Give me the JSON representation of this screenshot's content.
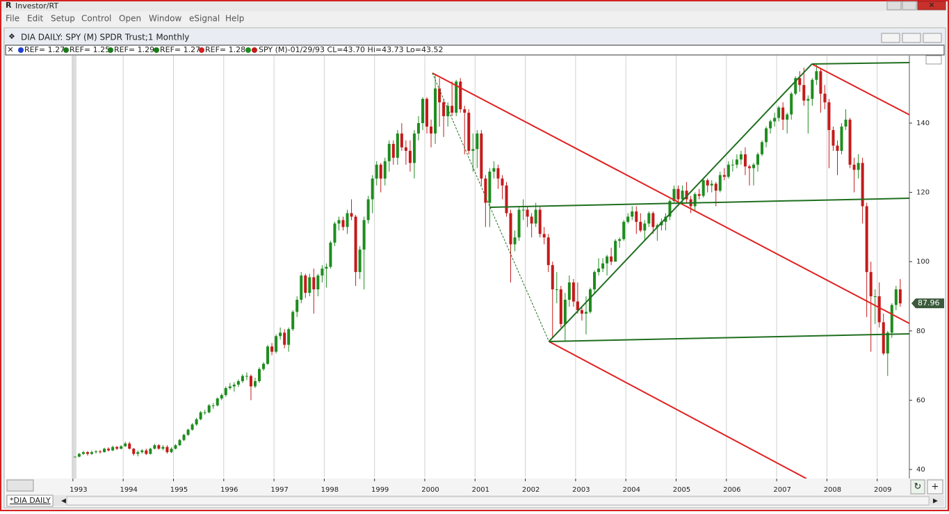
{
  "app": {
    "title": "Investor/RT",
    "menu": [
      "File",
      "Edit",
      "Setup",
      "Control",
      "Open",
      "Window",
      "eSignal",
      "Help"
    ]
  },
  "window": {
    "title": "DIA DAILY: SPY (M) SPDR Trust;1 Monthly",
    "legend": [
      {
        "label": "REF= 1.27",
        "color": "#1f3fd0"
      },
      {
        "label": "REF= 1.25",
        "color": "#1a7a1a"
      },
      {
        "label": "REF= 1.29",
        "color": "#1a7a1a"
      },
      {
        "label": "REF= 1.27",
        "color": "#1a7a1a"
      },
      {
        "label": "REF= 1.28",
        "color": "#d01f1f"
      }
    ],
    "quote": "SPY (M)-01/29/93 CL=43.70 Hi=43.73 Lo=43.52",
    "tab": "*DIA DAILY"
  },
  "chart_data": {
    "type": "candlestick",
    "up_color": "#1e8c1e",
    "down_color": "#c41a1a",
    "grid": true,
    "xlim": [
      1991.66,
      2009.64
    ],
    "xticks": [
      1993,
      1994,
      1995,
      1996,
      1997,
      1998,
      1999,
      2000,
      2001,
      2002,
      2003,
      2004,
      2005,
      2006,
      2007,
      2008,
      2009
    ],
    "ylim": [
      37.79,
      159.48
    ],
    "yticks": [
      40,
      60,
      80,
      100,
      120,
      140
    ],
    "candles": [
      [
        43.55,
        43.73,
        43.52,
        43.7
      ],
      [
        43.7,
        44.8,
        43.5,
        44.5
      ],
      [
        44.5,
        45.4,
        44.2,
        45
      ],
      [
        45,
        45.3,
        44,
        44.5
      ],
      [
        44.5,
        45.5,
        44.2,
        45
      ],
      [
        45,
        45.6,
        44.6,
        45.2
      ],
      [
        45.2,
        45.6,
        44.6,
        45
      ],
      [
        45,
        46.3,
        44.9,
        46
      ],
      [
        46,
        46.4,
        45.2,
        45.5
      ],
      [
        45.5,
        46.9,
        45.3,
        46.5
      ],
      [
        46.5,
        46.8,
        45.6,
        46
      ],
      [
        46,
        47,
        45.8,
        46.7
      ],
      [
        46.7,
        48,
        46.5,
        47.5
      ],
      [
        47.5,
        48,
        45.8,
        46
      ],
      [
        46,
        46.2,
        44,
        44.5
      ],
      [
        44.5,
        45.5,
        43.8,
        45
      ],
      [
        45,
        45.9,
        44.6,
        45.5
      ],
      [
        45.5,
        46,
        44.2,
        44.5
      ],
      [
        44.5,
        46.3,
        44.3,
        46
      ],
      [
        46,
        47.4,
        45.8,
        47
      ],
      [
        47,
        47.3,
        45.7,
        46
      ],
      [
        46,
        47,
        45.5,
        46.5
      ],
      [
        46.5,
        47,
        44.6,
        45
      ],
      [
        45,
        46.4,
        44.7,
        46
      ],
      [
        46,
        47.3,
        45.8,
        47
      ],
      [
        47,
        48.8,
        46.8,
        48.5
      ],
      [
        48.5,
        50.3,
        48.2,
        50
      ],
      [
        50,
        51.8,
        49.7,
        51.5
      ],
      [
        51.5,
        53.4,
        51.2,
        53
      ],
      [
        53,
        54.9,
        52.6,
        54.5
      ],
      [
        54.5,
        56.9,
        54.2,
        56.5
      ],
      [
        56.5,
        57.2,
        55.8,
        56.5
      ],
      [
        56.5,
        58.9,
        56.2,
        58.5
      ],
      [
        58.5,
        59.2,
        57.5,
        58.5
      ],
      [
        58.5,
        60.8,
        58.2,
        60.5
      ],
      [
        60.5,
        62,
        60,
        61.5
      ],
      [
        61.5,
        64,
        61,
        63.5
      ],
      [
        63.5,
        65,
        63,
        64
      ],
      [
        64,
        65.2,
        62.5,
        64.5
      ],
      [
        64.5,
        66,
        63.8,
        65.5
      ],
      [
        65.5,
        67.5,
        65,
        67
      ],
      [
        67,
        68,
        65.8,
        67
      ],
      [
        67,
        67.4,
        60,
        64
      ],
      [
        64,
        66.5,
        63.5,
        65.5
      ],
      [
        65.5,
        69.5,
        65,
        69
      ],
      [
        69,
        71,
        68.5,
        70.5
      ],
      [
        70.5,
        76,
        70.2,
        75.5
      ],
      [
        75.5,
        76.5,
        73,
        74
      ],
      [
        74,
        79,
        73.5,
        78.5
      ],
      [
        78.5,
        81,
        77.5,
        79.5
      ],
      [
        79.5,
        80.5,
        75,
        76
      ],
      [
        76,
        81,
        74,
        80.5
      ],
      [
        80.5,
        86,
        80,
        85.5
      ],
      [
        85.5,
        90,
        84,
        89
      ],
      [
        89,
        97,
        88,
        96
      ],
      [
        96,
        96.5,
        89.5,
        91
      ],
      [
        91,
        96.5,
        90,
        95.5
      ],
      [
        95.5,
        98,
        85,
        92
      ],
      [
        92,
        96.5,
        90,
        96
      ],
      [
        96,
        99,
        94,
        98
      ],
      [
        98,
        99.5,
        92.5,
        98.5
      ],
      [
        98.5,
        106,
        98,
        105.5
      ],
      [
        105.5,
        111.5,
        104.5,
        111
      ],
      [
        111,
        113,
        109,
        112
      ],
      [
        112,
        113,
        109,
        110
      ],
      [
        110,
        115,
        108,
        114
      ],
      [
        114,
        118,
        112,
        113
      ],
      [
        113,
        113.5,
        93,
        97
      ],
      [
        97,
        104.5,
        95,
        103.5
      ],
      [
        103.5,
        113,
        92,
        112
      ],
      [
        112,
        119,
        111,
        118
      ],
      [
        118,
        125,
        114,
        124
      ],
      [
        124,
        129,
        122,
        128
      ],
      [
        128,
        128.5,
        120,
        124
      ],
      [
        124,
        130,
        122,
        129
      ],
      [
        129,
        135,
        126,
        134
      ],
      [
        134,
        135,
        128,
        130
      ],
      [
        130,
        138,
        128,
        137
      ],
      [
        137,
        140,
        132,
        133
      ],
      [
        133,
        135,
        128,
        132
      ],
      [
        132,
        135,
        126,
        128.5
      ],
      [
        128.5,
        138,
        124,
        137
      ],
      [
        137,
        142,
        135,
        140
      ],
      [
        140,
        147.5,
        138,
        147
      ],
      [
        147,
        147.5,
        137,
        139
      ],
      [
        139,
        141,
        133,
        137
      ],
      [
        137,
        154,
        134,
        150
      ],
      [
        150,
        153,
        139,
        146
      ],
      [
        146,
        147,
        136,
        142
      ],
      [
        142,
        146,
        139,
        145
      ],
      [
        145,
        152,
        142,
        143
      ],
      [
        143,
        152.5,
        142,
        152
      ],
      [
        152,
        153,
        143,
        144
      ],
      [
        144,
        145,
        131,
        143
      ],
      [
        143,
        144,
        131,
        132
      ],
      [
        132,
        137,
        126,
        132.5
      ],
      [
        132.5,
        138,
        127,
        137
      ],
      [
        137,
        138,
        122,
        124
      ],
      [
        124,
        125,
        110,
        117
      ],
      [
        117,
        127,
        110,
        126
      ],
      [
        126,
        129,
        124,
        127
      ],
      [
        127,
        128,
        121,
        124
      ],
      [
        124,
        125,
        118,
        122
      ],
      [
        122,
        123,
        113,
        114
      ],
      [
        114,
        115,
        94,
        105
      ],
      [
        105,
        109,
        103,
        107
      ],
      [
        107,
        116,
        106,
        115
      ],
      [
        115,
        118,
        112,
        115
      ],
      [
        115,
        116,
        110,
        113
      ],
      [
        113,
        114,
        107,
        111
      ],
      [
        111,
        117,
        110,
        115
      ],
      [
        115,
        116,
        107,
        108
      ],
      [
        108,
        110,
        105,
        107
      ],
      [
        107,
        108,
        97,
        99
      ],
      [
        99,
        100,
        78,
        92
      ],
      [
        92,
        97,
        88,
        92
      ],
      [
        92,
        93,
        81,
        82
      ],
      [
        82,
        91,
        77,
        89
      ],
      [
        89,
        96,
        87,
        94
      ],
      [
        94,
        95,
        87,
        88.5
      ],
      [
        88.5,
        94,
        85,
        86
      ],
      [
        86,
        87,
        83,
        85
      ],
      [
        85,
        90,
        79,
        85.5
      ],
      [
        85.5,
        92.5,
        85,
        92
      ],
      [
        92,
        97.5,
        91,
        97
      ],
      [
        97,
        101,
        96,
        98
      ],
      [
        98,
        101,
        97,
        99.5
      ],
      [
        99.5,
        102,
        96,
        101.5
      ],
      [
        101.5,
        104,
        99,
        100
      ],
      [
        100,
        106.5,
        100,
        106
      ],
      [
        106,
        107,
        104,
        106.5
      ],
      [
        106.5,
        112,
        106,
        111.5
      ],
      [
        111.5,
        114,
        111,
        113
      ],
      [
        113,
        116,
        112,
        114.5
      ],
      [
        114.5,
        116,
        108,
        111.5
      ],
      [
        111.5,
        114,
        108.5,
        109
      ],
      [
        109,
        112,
        106,
        111
      ],
      [
        111,
        114.5,
        110,
        114
      ],
      [
        114,
        114.5,
        108,
        110
      ],
      [
        110,
        111,
        106,
        110.5
      ],
      [
        110.5,
        112.5,
        109,
        111.5
      ],
      [
        111.5,
        114,
        109,
        113
      ],
      [
        113,
        118,
        112,
        117.5
      ],
      [
        117.5,
        122,
        117,
        121
      ],
      [
        121,
        122,
        116,
        118
      ],
      [
        118,
        122,
        117,
        120.5
      ],
      [
        120.5,
        123,
        117,
        118
      ],
      [
        118,
        119,
        114,
        116
      ],
      [
        116,
        120,
        114.5,
        119.5
      ],
      [
        119.5,
        121,
        118,
        119
      ],
      [
        119,
        124,
        118.5,
        123.5
      ],
      [
        123.5,
        124,
        120,
        122
      ],
      [
        122,
        123.5,
        120,
        122.5
      ],
      [
        122.5,
        123,
        116,
        120.5
      ],
      [
        120.5,
        126,
        120,
        125
      ],
      [
        125,
        127,
        123.5,
        124.5
      ],
      [
        124.5,
        129,
        124,
        128
      ],
      [
        128,
        129.5,
        126,
        128
      ],
      [
        128,
        131,
        127,
        129.5
      ],
      [
        129.5,
        132,
        128,
        131
      ],
      [
        131,
        133,
        125,
        127.5
      ],
      [
        127.5,
        128,
        122,
        127
      ],
      [
        127,
        128.5,
        122,
        128
      ],
      [
        128,
        131.5,
        126,
        131
      ],
      [
        131,
        135,
        130.5,
        134.5
      ],
      [
        134.5,
        139,
        133,
        138.5
      ],
      [
        138.5,
        141,
        137,
        140.5
      ],
      [
        140.5,
        143,
        139,
        141.5
      ],
      [
        141.5,
        145,
        140.5,
        144.5
      ],
      [
        144.5,
        146,
        138,
        141
      ],
      [
        141,
        143,
        137,
        142.5
      ],
      [
        142.5,
        149,
        141,
        148.5
      ],
      [
        148.5,
        153.5,
        148,
        153
      ],
      [
        153,
        155,
        149,
        151
      ],
      [
        151,
        156,
        145,
        146.5
      ],
      [
        146.5,
        148,
        137,
        147
      ],
      [
        147,
        153,
        145,
        152.5
      ],
      [
        152.5,
        157,
        151,
        155
      ],
      [
        155,
        156,
        143,
        148.5
      ],
      [
        148.5,
        151,
        144,
        146
      ],
      [
        146,
        147,
        127,
        138
      ],
      [
        138,
        139,
        132,
        133.5
      ],
      [
        133.5,
        135,
        125,
        132
      ],
      [
        132,
        140,
        131,
        139
      ],
      [
        139,
        144,
        138,
        141
      ],
      [
        141,
        141.5,
        127,
        128
      ],
      [
        128,
        130,
        120,
        126.5
      ],
      [
        126.5,
        131,
        124,
        128.5
      ],
      [
        128.5,
        130,
        111,
        116
      ],
      [
        116,
        117,
        84,
        97
      ],
      [
        97,
        100,
        74,
        90
      ],
      [
        90,
        92,
        82,
        90
      ],
      [
        90,
        94,
        81,
        82.5
      ],
      [
        82.5,
        85,
        73,
        73.5
      ],
      [
        73.5,
        80,
        67,
        79.5
      ],
      [
        79.5,
        88,
        78,
        87.5
      ],
      [
        87.5,
        93,
        86,
        92
      ],
      [
        92,
        95,
        87,
        87.96
      ]
    ],
    "lines": [
      {
        "color": "#e02020",
        "x": [
          2000.15,
          2009.64
        ],
        "y": [
          154.46,
          82.17
        ]
      },
      {
        "color": "#e02020",
        "x": [
          2002.47,
          2007.59
        ],
        "y": [
          76.95,
          37.39
        ]
      },
      {
        "color": "#e02020",
        "x": [
          2007.7,
          2009.64
        ],
        "y": [
          157.07,
          142.41
        ]
      },
      {
        "color": "#1f6e1f",
        "dashed": true,
        "x": [
          2000.15,
          2001.3,
          2002.47
        ],
        "y": [
          154.46,
          115.7,
          76.95
        ]
      },
      {
        "color": "#1f6e1f",
        "x": [
          2001.3,
          2009.64
        ],
        "y": [
          115.7,
          118.31
        ]
      },
      {
        "color": "#1f6e1f",
        "x": [
          2002.47,
          2009.64
        ],
        "y": [
          76.95,
          79.16
        ]
      },
      {
        "color": "#1f6e1f",
        "x": [
          2002.47,
          2007.7
        ],
        "y": [
          76.95,
          157.07
        ]
      },
      {
        "color": "#1f6e1f",
        "x": [
          2007.7,
          2009.64
        ],
        "y": [
          157.07,
          157.47
        ]
      }
    ]
  }
}
